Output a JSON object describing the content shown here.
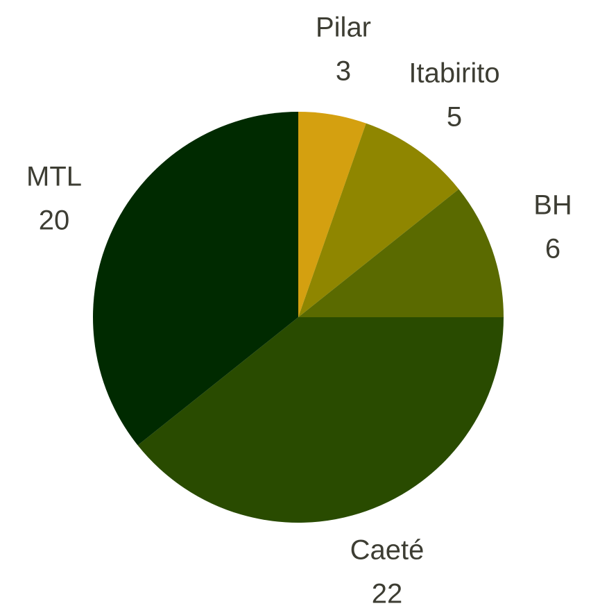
{
  "chart_data": {
    "type": "pie",
    "title": "",
    "start_angle_deg": 0,
    "direction": "clockwise",
    "slices": [
      {
        "label": "Pilar",
        "value": 3,
        "color": "#d4a010"
      },
      {
        "label": "Itabirito",
        "value": 5,
        "color": "#8f8600"
      },
      {
        "label": "BH",
        "value": 6,
        "color": "#5a6a00"
      },
      {
        "label": "Caeté",
        "value": 22,
        "color": "#294b00"
      },
      {
        "label": "MTL",
        "value": 20,
        "color": "#002a00"
      }
    ]
  }
}
